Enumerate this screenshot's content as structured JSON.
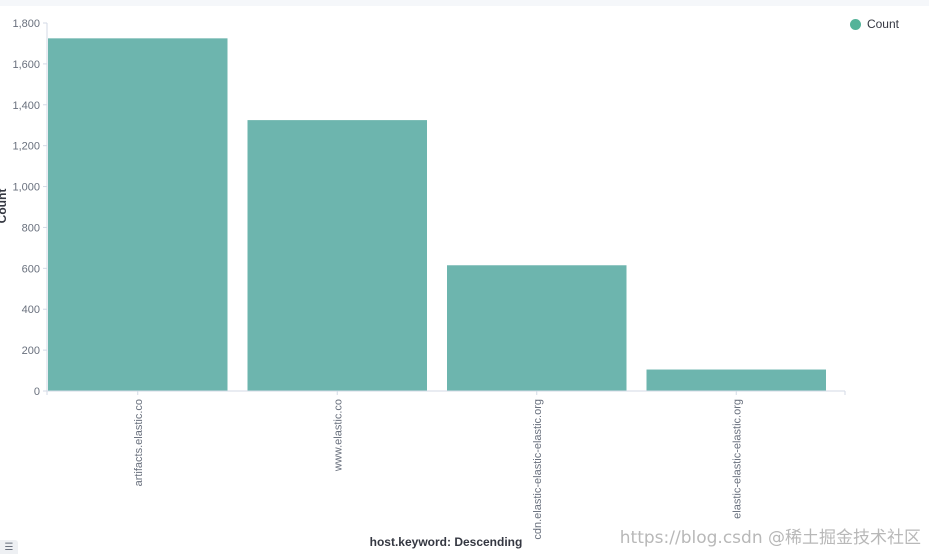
{
  "chart_data": {
    "type": "bar",
    "categories": [
      "artifacts.elastic.co",
      "www.elastic.co",
      "cdn.elastic-elastic-elastic.org",
      "elastic-elastic-elastic.org"
    ],
    "series": [
      {
        "name": "Count",
        "values": [
          1725,
          1325,
          615,
          105
        ]
      }
    ],
    "title": "",
    "xlabel": "host.keyword: Descending",
    "ylabel": "Count",
    "ylim": [
      0,
      1800
    ],
    "yticks": [
      0,
      200,
      400,
      600,
      800,
      1000,
      1200,
      1400,
      1600,
      1800
    ],
    "ytick_labels": [
      "0",
      "200",
      "400",
      "600",
      "800",
      "1,000",
      "1,200",
      "1,400",
      "1,600",
      "1,800"
    ],
    "grid": false,
    "legend_position": "top-right",
    "bar_color": "#6db5ae",
    "legend_color": "#54b399"
  },
  "legend": {
    "label": "Count"
  },
  "legend_toggle": {
    "icon": "list-icon"
  },
  "watermark": {
    "text": "https://blog.csdn @稀土掘金技术社区"
  }
}
